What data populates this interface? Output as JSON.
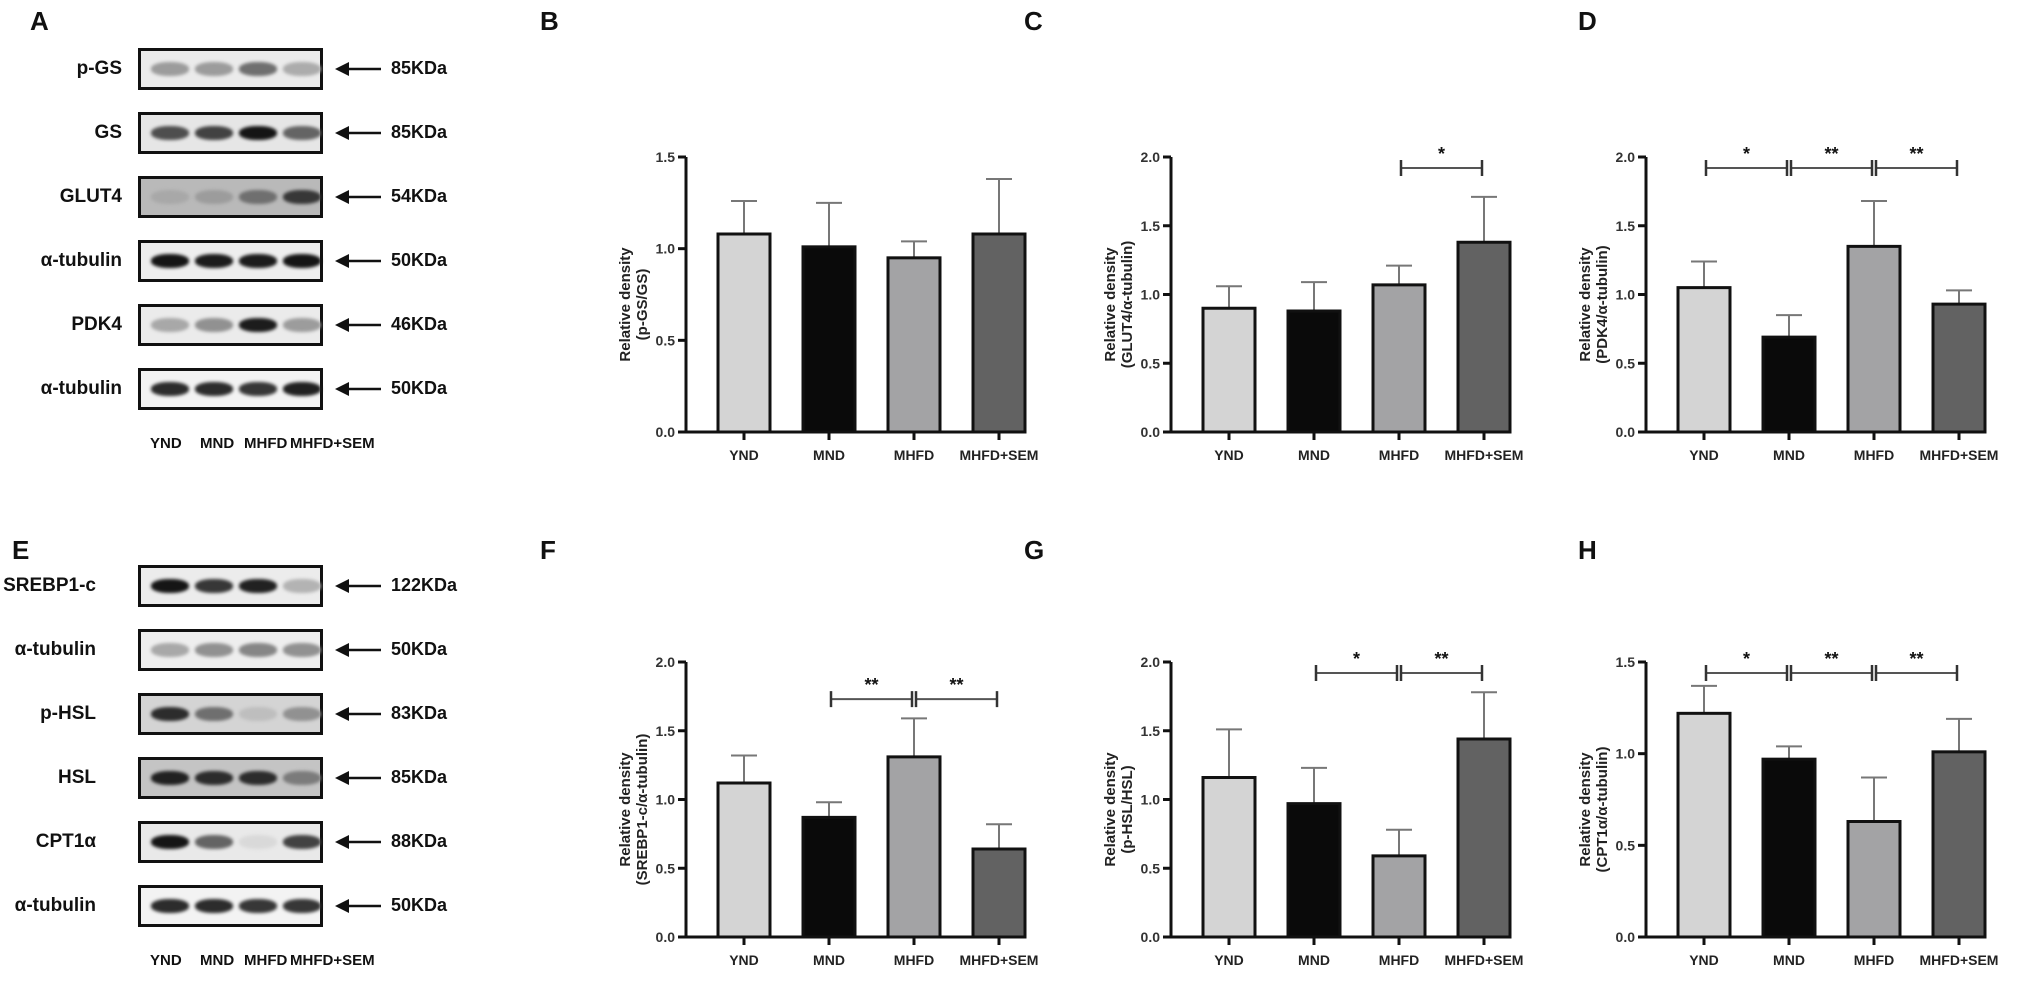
{
  "lanes": [
    "YND",
    "MND",
    "MHFD",
    "MHFD+SEM"
  ],
  "bar_colors": [
    "#d4d4d4",
    "#0a0a0a",
    "#a3a3a5",
    "#626262"
  ],
  "blots": [
    {
      "panel": "A",
      "rows": [
        {
          "protein": "p-GS",
          "kda": "85KDa",
          "intensity": [
            0.35,
            0.35,
            0.55,
            0.28
          ],
          "bg": "#ebebeb"
        },
        {
          "protein": "GS",
          "kda": "85KDa",
          "intensity": [
            0.7,
            0.75,
            0.95,
            0.6
          ],
          "bg": "#e6e6e6"
        },
        {
          "protein": "GLUT4",
          "kda": "54KDa",
          "intensity": [
            0.3,
            0.35,
            0.55,
            0.8
          ],
          "bg": "#b9b9b9"
        },
        {
          "protein": "α-tubulin",
          "kda": "50KDa",
          "intensity": [
            0.95,
            0.92,
            0.92,
            0.95
          ],
          "bg": "#eeeeee"
        },
        {
          "protein": "PDK4",
          "kda": "46KDa",
          "intensity": [
            0.3,
            0.4,
            0.92,
            0.35
          ],
          "bg": "#ebebeb"
        },
        {
          "protein": "α-tubulin",
          "kda": "50KDa",
          "intensity": [
            0.85,
            0.85,
            0.8,
            0.9
          ],
          "bg": "#f3f3f3"
        }
      ]
    },
    {
      "panel": "E",
      "rows": [
        {
          "protein": "SREBP1-c",
          "kda": "122KDa",
          "intensity": [
            0.95,
            0.8,
            0.9,
            0.25
          ],
          "bg": "#ececec"
        },
        {
          "protein": "α-tubulin",
          "kda": "50KDa",
          "intensity": [
            0.3,
            0.4,
            0.45,
            0.4
          ],
          "bg": "#eeeeee"
        },
        {
          "protein": "p-HSL",
          "kda": "83KDa",
          "intensity": [
            0.85,
            0.55,
            0.2,
            0.4
          ],
          "bg": "#d4d4d4"
        },
        {
          "protein": "HSL",
          "kda": "85KDa",
          "intensity": [
            0.9,
            0.85,
            0.85,
            0.5
          ],
          "bg": "#c4c4c4"
        },
        {
          "protein": "CPT1α",
          "kda": "88KDa",
          "intensity": [
            0.95,
            0.6,
            0.08,
            0.75
          ],
          "bg": "#e9e9e9"
        },
        {
          "protein": "α-tubulin",
          "kda": "50KDa",
          "intensity": [
            0.85,
            0.85,
            0.8,
            0.8
          ],
          "bg": "#f3f3f3"
        }
      ]
    }
  ],
  "chart_data": [
    {
      "panel": "B",
      "type": "bar",
      "categories": [
        "YND",
        "MND",
        "MHFD",
        "MHFD+SEM"
      ],
      "values": [
        1.08,
        1.01,
        0.95,
        1.08
      ],
      "errors": [
        0.18,
        0.24,
        0.09,
        0.3
      ],
      "ylabel": [
        "Relative density",
        "(p-GS/GS)"
      ],
      "ylim": [
        0,
        1.5
      ],
      "yticks": [
        "0.0",
        "0.5",
        "1.0",
        "1.5"
      ],
      "ytick_values": [
        0,
        0.5,
        1.0,
        1.5
      ],
      "significance": []
    },
    {
      "panel": "C",
      "type": "bar",
      "categories": [
        "YND",
        "MND",
        "MHFD",
        "MHFD+SEM"
      ],
      "values": [
        0.9,
        0.88,
        1.07,
        1.38
      ],
      "errors": [
        0.16,
        0.21,
        0.14,
        0.33
      ],
      "ylabel": [
        "Relative density",
        "(GLUT4/α-tubulin)"
      ],
      "ylim": [
        0,
        2.0
      ],
      "yticks": [
        "0.0",
        "0.5",
        "1.0",
        "1.5",
        "2.0"
      ],
      "ytick_values": [
        0,
        0.5,
        1.0,
        1.5,
        2.0
      ],
      "significance": [
        {
          "from": 2,
          "to": 3,
          "label": "*",
          "level": 1.92
        }
      ]
    },
    {
      "panel": "D",
      "type": "bar",
      "categories": [
        "YND",
        "MND",
        "MHFD",
        "MHFD+SEM"
      ],
      "values": [
        1.05,
        0.69,
        1.35,
        0.93
      ],
      "errors": [
        0.19,
        0.16,
        0.33,
        0.1
      ],
      "ylabel": [
        "Relative density",
        "(PDK4/α-tubulin)"
      ],
      "ylim": [
        0,
        2.0
      ],
      "yticks": [
        "0.0",
        "0.5",
        "1.0",
        "1.5",
        "2.0"
      ],
      "ytick_values": [
        0,
        0.5,
        1.0,
        1.5,
        2.0
      ],
      "significance": [
        {
          "from": 0,
          "to": 1,
          "label": "*",
          "level": 1.92
        },
        {
          "from": 1,
          "to": 2,
          "label": "**",
          "level": 1.92
        },
        {
          "from": 2,
          "to": 3,
          "label": "**",
          "level": 1.92
        }
      ]
    },
    {
      "panel": "F",
      "type": "bar",
      "categories": [
        "YND",
        "MND",
        "MHFD",
        "MHFD+SEM"
      ],
      "values": [
        1.12,
        0.87,
        1.31,
        0.64
      ],
      "errors": [
        0.2,
        0.11,
        0.28,
        0.18
      ],
      "ylabel": [
        "Relative density",
        "(SREBP1-c/α-tubulin)"
      ],
      "ylim": [
        0,
        2.0
      ],
      "yticks": [
        "0.0",
        "0.5",
        "1.0",
        "1.5",
        "2.0"
      ],
      "ytick_values": [
        0,
        0.5,
        1.0,
        1.5,
        2.0
      ],
      "significance": [
        {
          "from": 1,
          "to": 2,
          "label": "**",
          "level": 1.73
        },
        {
          "from": 2,
          "to": 3,
          "label": "**",
          "level": 1.73
        }
      ]
    },
    {
      "panel": "G",
      "type": "bar",
      "categories": [
        "YND",
        "MND",
        "MHFD",
        "MHFD+SEM"
      ],
      "values": [
        1.16,
        0.97,
        0.59,
        1.44
      ],
      "errors": [
        0.35,
        0.26,
        0.19,
        0.34
      ],
      "ylabel": [
        "Relative density",
        "(p-HSL/HSL)"
      ],
      "ylim": [
        0,
        2.0
      ],
      "yticks": [
        "0.0",
        "0.5",
        "1.0",
        "1.5",
        "2.0"
      ],
      "ytick_values": [
        0,
        0.5,
        1.0,
        1.5,
        2.0
      ],
      "significance": [
        {
          "from": 1,
          "to": 2,
          "label": "*",
          "level": 1.92
        },
        {
          "from": 2,
          "to": 3,
          "label": "**",
          "level": 1.92
        }
      ]
    },
    {
      "panel": "H",
      "type": "bar",
      "categories": [
        "YND",
        "MND",
        "MHFD",
        "MHFD+SEM"
      ],
      "values": [
        1.22,
        0.97,
        0.63,
        1.01
      ],
      "errors": [
        0.15,
        0.07,
        0.24,
        0.18
      ],
      "ylabel": [
        "Relative density",
        "(CPT1α/α-tubulin)"
      ],
      "ylim": [
        0,
        1.5
      ],
      "yticks": [
        "0.0",
        "0.5",
        "1.0",
        "1.5"
      ],
      "ytick_values": [
        0,
        0.5,
        1.0,
        1.5
      ],
      "significance": [
        {
          "from": 0,
          "to": 1,
          "label": "*",
          "level": 1.44
        },
        {
          "from": 1,
          "to": 2,
          "label": "**",
          "level": 1.44
        },
        {
          "from": 2,
          "to": 3,
          "label": "**",
          "level": 1.44
        }
      ]
    }
  ]
}
